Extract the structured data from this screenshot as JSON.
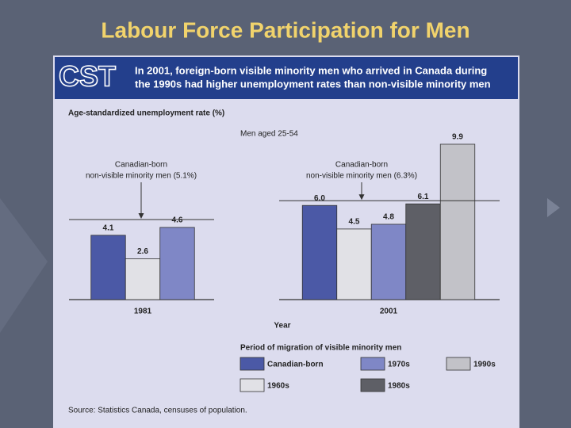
{
  "slide_title": "Labour Force Participation for Men",
  "header": {
    "logo": "CST",
    "headline": [
      "In 2001, foreign-born visible minority men who arrived in Canada during",
      "the 1990s had higher unemployment rates than non-visible minority men"
    ]
  },
  "chart_data": {
    "type": "bar",
    "y_label": "Age-standardized unemployment rate (%)",
    "subtitle": "Men aged 25-54",
    "x_label": "Year",
    "categories": [
      "1981",
      "2001"
    ],
    "ylim": [
      0,
      10
    ],
    "series": [
      {
        "name": "Canadian-born",
        "color": "#4b59a6",
        "values": [
          4.1,
          6.0
        ],
        "value_labels": [
          "4.1",
          "6.0"
        ]
      },
      {
        "name": "1960s",
        "color": "#e1e1e6",
        "values": [
          2.6,
          4.5
        ]
      },
      {
        "name": "1970s",
        "color": "#7f87c6",
        "values": [
          4.6,
          4.8
        ]
      },
      {
        "name": "1980s",
        "color": "#5e5f66",
        "values": [
          null,
          6.1
        ]
      },
      {
        "name": "1990s",
        "color": "#c2c2c8",
        "values": [
          null,
          9.9
        ]
      }
    ],
    "reference_lines": [
      {
        "category": "1981",
        "value": 5.1,
        "label": [
          "Canadian-born",
          "non-visible minority men (5.1%)"
        ]
      },
      {
        "category": "2001",
        "value": 6.3,
        "label": [
          "Canadian-born",
          "non-visible minority men (6.3%)"
        ]
      }
    ],
    "legend_title": "Period of migration of visible minority men",
    "source": "Source: Statistics Canada, censuses of population."
  }
}
